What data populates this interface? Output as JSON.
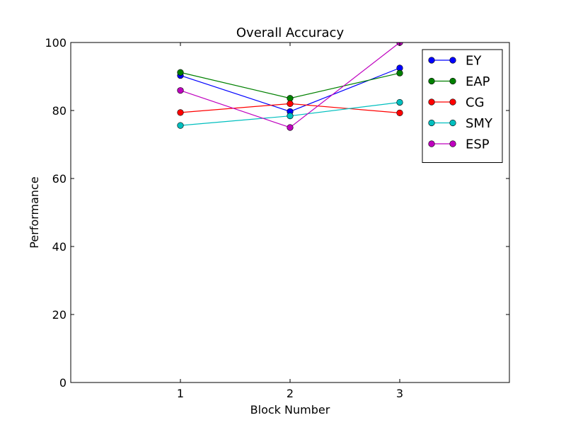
{
  "chart_data": {
    "type": "line",
    "title": "Overall Accuracy",
    "xlabel": "Block Number",
    "ylabel": "Performance",
    "x": [
      1,
      2,
      3
    ],
    "xlim": [
      0,
      4
    ],
    "ylim": [
      0,
      100
    ],
    "xticks": [
      1,
      2,
      3
    ],
    "yticks": [
      0,
      20,
      40,
      60,
      80,
      100
    ],
    "grid": false,
    "legend_position": "top-right",
    "series": [
      {
        "name": "EY",
        "color": "#0000ff",
        "values": [
          90.3,
          79.7,
          92.5
        ]
      },
      {
        "name": "EAP",
        "color": "#008000",
        "values": [
          91.2,
          83.6,
          91.0
        ]
      },
      {
        "name": "CG",
        "color": "#ff0000",
        "values": [
          79.4,
          82.0,
          79.3
        ]
      },
      {
        "name": "SMY",
        "color": "#00bfbf",
        "values": [
          75.6,
          78.4,
          82.4
        ]
      },
      {
        "name": "ESP",
        "color": "#bf00bf",
        "values": [
          85.9,
          75.0,
          100.0
        ]
      }
    ]
  }
}
